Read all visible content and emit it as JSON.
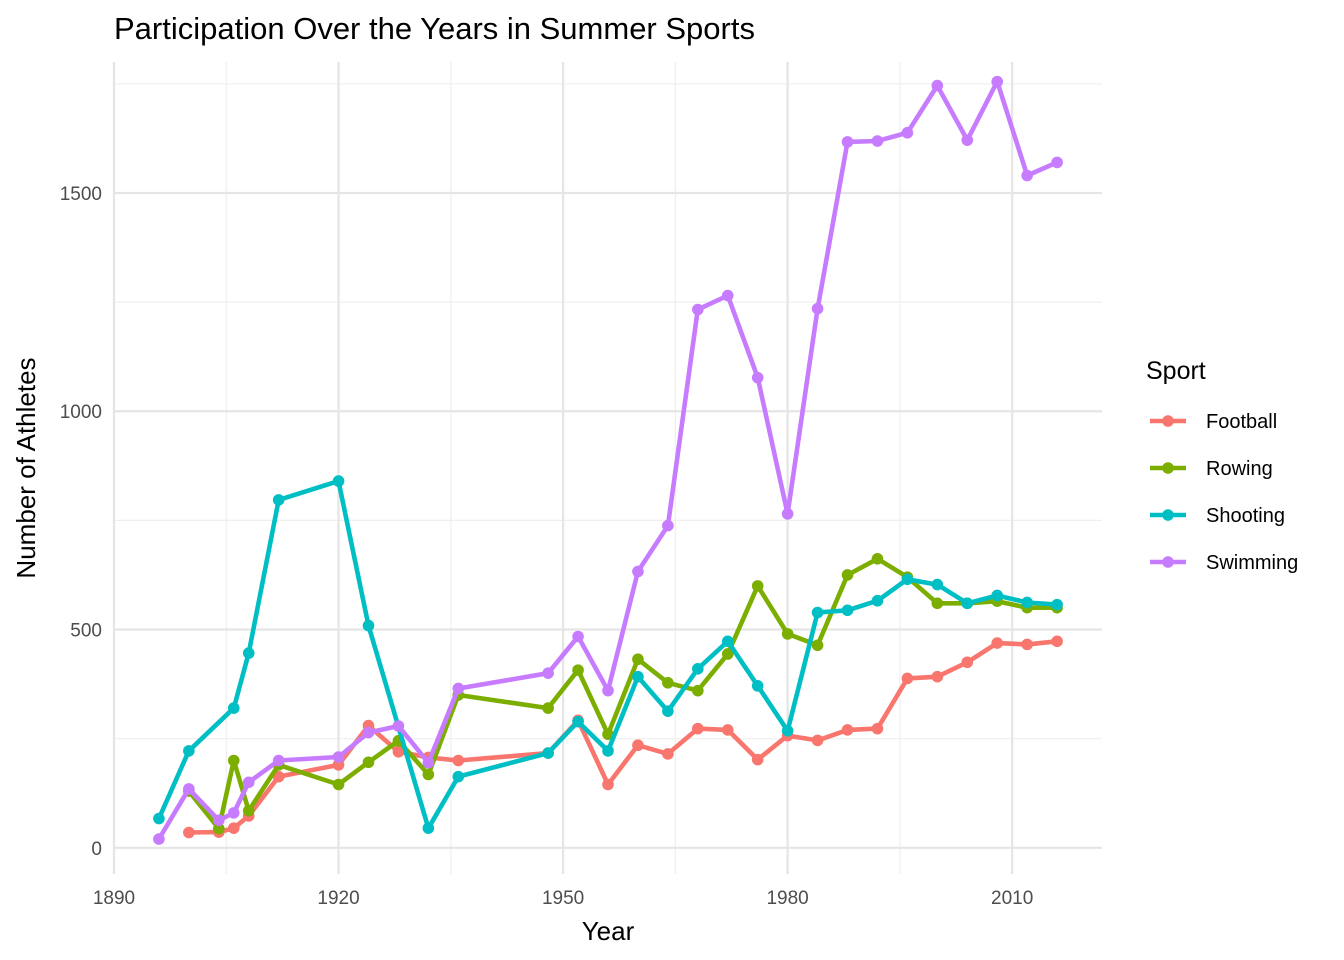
{
  "chart_data": {
    "type": "line",
    "title": "Participation Over the Years in Summer Sports",
    "xlabel": "Year",
    "ylabel": "Number of Athletes",
    "xlim": [
      1890,
      2022
    ],
    "ylim": [
      -60,
      1800
    ],
    "x_ticks": [
      1890,
      1920,
      1950,
      1980,
      2010
    ],
    "y_ticks": [
      0,
      500,
      1000,
      1500
    ],
    "grid": true,
    "legend": {
      "title": "Sport",
      "position": "right"
    },
    "series": [
      {
        "name": "Football",
        "color": "#F8766D",
        "x": [
          1900,
          1904,
          1906,
          1908,
          1912,
          1920,
          1924,
          1928,
          1932,
          1936,
          1948,
          1952,
          1956,
          1960,
          1964,
          1968,
          1972,
          1976,
          1980,
          1984,
          1988,
          1992,
          1996,
          2000,
          2004,
          2008,
          2012,
          2016
        ],
        "y": [
          35,
          36,
          45,
          73,
          163,
          190,
          280,
          220,
          207,
          200,
          217,
          292,
          145,
          235,
          215,
          273,
          270,
          202,
          257,
          246,
          270,
          273,
          388,
          392,
          425,
          469,
          466,
          473
        ]
      },
      {
        "name": "Rowing",
        "color": "#7CAE00",
        "x": [
          1900,
          1904,
          1906,
          1908,
          1912,
          1920,
          1924,
          1928,
          1932,
          1936,
          1948,
          1952,
          1956,
          1960,
          1964,
          1968,
          1972,
          1976,
          1980,
          1984,
          1988,
          1992,
          1996,
          2000,
          2004,
          2008,
          2012,
          2016
        ],
        "y": [
          130,
          44,
          200,
          85,
          190,
          145,
          196,
          245,
          168,
          350,
          320,
          407,
          260,
          432,
          378,
          360,
          444,
          600,
          490,
          464,
          625,
          662,
          620,
          560,
          560,
          565,
          550,
          550
        ]
      },
      {
        "name": "Shooting",
        "color": "#00BFC4",
        "x": [
          1896,
          1900,
          1906,
          1908,
          1912,
          1920,
          1924,
          1932,
          1936,
          1948,
          1952,
          1956,
          1960,
          1964,
          1968,
          1972,
          1976,
          1980,
          1984,
          1988,
          1992,
          1996,
          2000,
          2004,
          2008,
          2012,
          2016
        ],
        "y": [
          67,
          222,
          320,
          446,
          797,
          840,
          509,
          45,
          163,
          217,
          289,
          222,
          392,
          313,
          410,
          473,
          371,
          268,
          539,
          544,
          566,
          615,
          603,
          560,
          578,
          562,
          557
        ]
      },
      {
        "name": "Swimming",
        "color": "#C77CFF",
        "x": [
          1896,
          1900,
          1904,
          1906,
          1908,
          1912,
          1920,
          1924,
          1928,
          1932,
          1936,
          1948,
          1952,
          1956,
          1960,
          1964,
          1968,
          1972,
          1976,
          1980,
          1984,
          1988,
          1992,
          1996,
          2000,
          2004,
          2008,
          2012,
          2016
        ],
        "y": [
          20,
          135,
          63,
          80,
          150,
          200,
          208,
          264,
          279,
          195,
          365,
          400,
          484,
          360,
          633,
          738,
          1233,
          1265,
          1077,
          765,
          1235,
          1617,
          1619,
          1638,
          1746,
          1621,
          1755,
          1540,
          1570
        ]
      }
    ]
  }
}
